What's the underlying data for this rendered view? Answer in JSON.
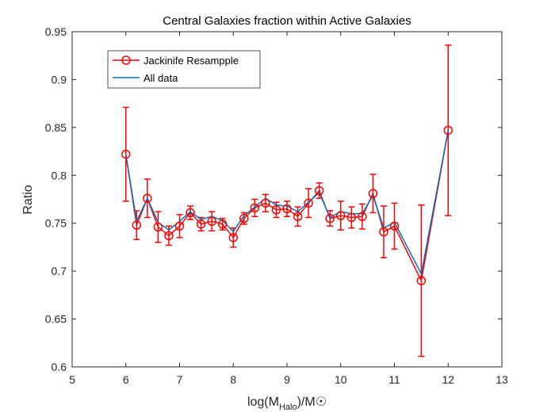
{
  "chart_data": {
    "type": "line",
    "title": "Central Galaxies fraction within Active Galaxies",
    "xlabel": "log(M_Halo)/M☉",
    "xlabel_parts": {
      "pre": "log(M",
      "sub": "Halo",
      "post": ")/M☉"
    },
    "ylabel": "Ratio",
    "xlim": [
      5,
      13
    ],
    "ylim": [
      0.6,
      0.95
    ],
    "xticks": [
      "5",
      "6",
      "7",
      "8",
      "9",
      "10",
      "11",
      "12",
      "13"
    ],
    "yticks": [
      "0.6",
      "0.65",
      "0.7",
      "0.75",
      "0.8",
      "0.85",
      "0.9",
      "0.95"
    ],
    "legend_position": "top-left",
    "series": [
      {
        "name": "Jackinife Resampple",
        "color": "#ff0000",
        "marker": "circle",
        "x": [
          6.0,
          6.2,
          6.4,
          6.6,
          6.8,
          7.0,
          7.2,
          7.4,
          7.6,
          7.8,
          8.0,
          8.2,
          8.4,
          8.6,
          8.8,
          9.0,
          9.2,
          9.4,
          9.6,
          9.8,
          10.0,
          10.2,
          10.4,
          10.6,
          10.8,
          11.0,
          11.5,
          12.0
        ],
        "y": [
          0.822,
          0.748,
          0.776,
          0.746,
          0.737,
          0.747,
          0.761,
          0.749,
          0.752,
          0.749,
          0.735,
          0.755,
          0.766,
          0.771,
          0.764,
          0.765,
          0.757,
          0.771,
          0.784,
          0.755,
          0.758,
          0.756,
          0.757,
          0.781,
          0.741,
          0.747,
          0.69,
          0.847
        ],
        "err": [
          0.049,
          0.015,
          0.02,
          0.016,
          0.01,
          0.012,
          0.007,
          0.007,
          0.01,
          0.006,
          0.01,
          0.006,
          0.009,
          0.009,
          0.008,
          0.008,
          0.01,
          0.015,
          0.008,
          0.008,
          0.015,
          0.011,
          0.013,
          0.02,
          0.027,
          0.024,
          0.079,
          0.089
        ]
      },
      {
        "name": "All data",
        "color": "#0072bd",
        "x": [
          6.0,
          6.2,
          6.4,
          6.6,
          6.8,
          7.0,
          7.2,
          7.4,
          7.6,
          7.8,
          8.0,
          8.2,
          8.4,
          8.6,
          8.8,
          9.0,
          9.2,
          9.4,
          9.6,
          9.8,
          10.0,
          10.2,
          10.4,
          10.6,
          10.8,
          11.0,
          11.5,
          12.0
        ],
        "y": [
          0.822,
          0.752,
          0.776,
          0.751,
          0.743,
          0.752,
          0.762,
          0.754,
          0.757,
          0.753,
          0.741,
          0.758,
          0.767,
          0.776,
          0.769,
          0.768,
          0.762,
          0.772,
          0.782,
          0.756,
          0.762,
          0.76,
          0.76,
          0.779,
          0.745,
          0.751,
          0.697,
          0.847
        ]
      }
    ]
  }
}
